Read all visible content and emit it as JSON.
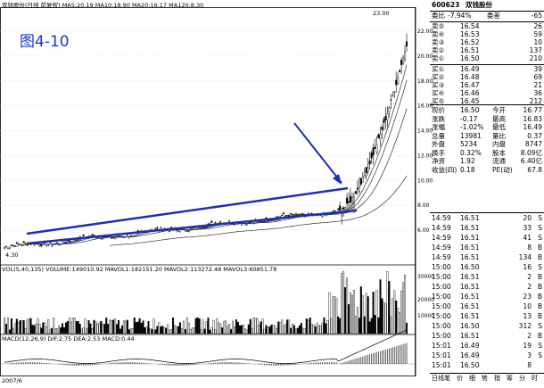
{
  "figure_label": "图4-10",
  "chart": {
    "title_line": "双钱股份(日线 前复权) MA5:20.19  MA10:18.90  MA20:16.17  MA120:8.30",
    "high_label": "23.00",
    "low_label": "4.30",
    "y_ticks": [
      "22.00",
      "20.00",
      "18.00",
      "16.00",
      "14.00",
      "12.00",
      "10.00",
      "8.00",
      "6.00"
    ],
    "vol_line": "VOL(5,40,135) VOLUME:149010.92 MAVOL1:182151.20 MAVOL2:113272.48 MAVOL3:60851.78",
    "vol_ticks": [
      "30000",
      "20000",
      "10000"
    ],
    "macd_line": "MACD(12,26,9) DIF:2.75 DEA:2.53 MACD:0.44",
    "x_start_label": "2007/6"
  },
  "quote": {
    "code": "600623",
    "name": "双钱股份",
    "ratio_label": "委比",
    "ratio_value": "-7.94%",
    "diff_label": "委差",
    "diff_value": "-65",
    "sells": [
      {
        "label": "卖⑤",
        "price": "16.54",
        "vol": "26"
      },
      {
        "label": "卖④",
        "price": "16.53",
        "vol": "59"
      },
      {
        "label": "卖③",
        "price": "16.52",
        "vol": "10"
      },
      {
        "label": "卖②",
        "price": "16.51",
        "vol": "137"
      },
      {
        "label": "卖①",
        "price": "16.50",
        "vol": "210"
      }
    ],
    "buys": [
      {
        "label": "买①",
        "price": "16.49",
        "vol": "39"
      },
      {
        "label": "买②",
        "price": "16.48",
        "vol": "69"
      },
      {
        "label": "买③",
        "price": "16.47",
        "vol": "21"
      },
      {
        "label": "买④",
        "price": "16.46",
        "vol": "36"
      },
      {
        "label": "买⑤",
        "price": "16.45",
        "vol": "212"
      }
    ],
    "stats": [
      {
        "l1": "现价",
        "v1": "16.50",
        "l2": "今开",
        "v2": "16.77"
      },
      {
        "l1": "涨跌",
        "v1": "-0.17",
        "l2": "最高",
        "v2": "16.83"
      },
      {
        "l1": "涨幅",
        "v1": "-1.02%",
        "l2": "最低",
        "v2": "16.49"
      },
      {
        "l1": "总量",
        "v1": "13981",
        "l2": "量比",
        "v2": "0.37"
      },
      {
        "l1": "外盘",
        "v1": "5234",
        "l2": "内盘",
        "v2": "8747"
      },
      {
        "l1": "换手",
        "v1": "0.32%",
        "l2": "股本",
        "v2": "8.09亿"
      },
      {
        "l1": "净资",
        "v1": "1.92",
        "l2": "流通",
        "v2": "6.40亿"
      },
      {
        "l1": "收益(四)",
        "v1": "0.18",
        "l2": "PE(动)",
        "v2": "67.8"
      }
    ],
    "ticks": [
      {
        "t": "14:59",
        "p": "16.51",
        "v": "20",
        "d": "S"
      },
      {
        "t": "14:59",
        "p": "16.51",
        "v": "33",
        "d": "S"
      },
      {
        "t": "14:59",
        "p": "16.51",
        "v": "41",
        "d": "S"
      },
      {
        "t": "14:59",
        "p": "16.51",
        "v": "8",
        "d": "B"
      },
      {
        "t": "14:59",
        "p": "16.51",
        "v": "134",
        "d": "B"
      },
      {
        "t": "15:00",
        "p": "16.50",
        "v": "16",
        "d": "S"
      },
      {
        "t": "15:00",
        "p": "16.51",
        "v": "2",
        "d": "B"
      },
      {
        "t": "15:00",
        "p": "16.51",
        "v": "2",
        "d": "B"
      },
      {
        "t": "15:00",
        "p": "16.51",
        "v": "23",
        "d": "B"
      },
      {
        "t": "15:00",
        "p": "16.51",
        "v": "10",
        "d": "B"
      },
      {
        "t": "15:00",
        "p": "16.51",
        "v": "13",
        "d": "B"
      },
      {
        "t": "15:00",
        "p": "16.50",
        "v": "312",
        "d": "S"
      },
      {
        "t": "15:00",
        "p": "16.51",
        "v": "2",
        "d": "B"
      },
      {
        "t": "15:01",
        "p": "16.49",
        "v": "19",
        "d": "S"
      },
      {
        "t": "15:01",
        "p": "16.49",
        "v": "3",
        "d": "S"
      },
      {
        "t": "15:01",
        "p": "16.50",
        "v": "8",
        "d": ""
      }
    ]
  },
  "bottom_tabs": [
    "日线",
    "笔",
    "价",
    "细",
    "势",
    "指",
    "筹",
    "分",
    "时"
  ]
}
